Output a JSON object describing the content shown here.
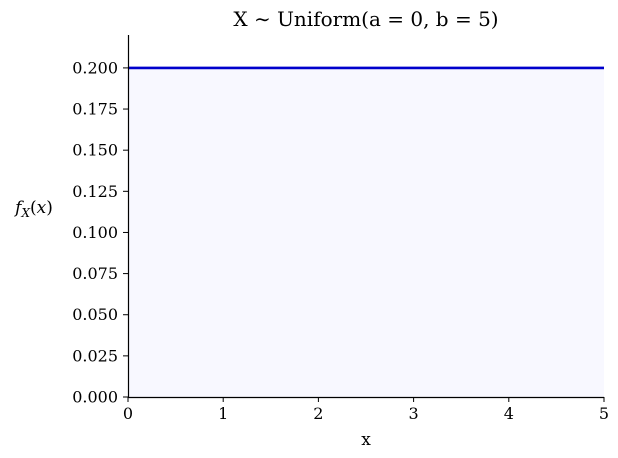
{
  "chart_data": {
    "type": "line",
    "title": "X ∼ Uniform(a = 0, b = 5)",
    "xlabel": "x",
    "ylabel": "f_X(x)",
    "ylabel_display": "fX(x)",
    "xlim": [
      0,
      5
    ],
    "ylim": [
      0,
      0.22
    ],
    "xticks": [
      0,
      1,
      2,
      3,
      4,
      5
    ],
    "xtick_labels": [
      "0",
      "1",
      "2",
      "3",
      "4",
      "5"
    ],
    "yticks": [
      0,
      0.025,
      0.05,
      0.075,
      0.1,
      0.125,
      0.15,
      0.175,
      0.2
    ],
    "ytick_labels": [
      "0.000",
      "0.025",
      "0.050",
      "0.075",
      "0.100",
      "0.125",
      "0.150",
      "0.175",
      "0.200"
    ],
    "series": [
      {
        "x": [
          0,
          5
        ],
        "y": [
          0.2,
          0.2
        ],
        "color": "#0000cc",
        "fill_color": "#f8f8ff"
      }
    ],
    "grid": false,
    "spines": [
      "left",
      "bottom"
    ]
  }
}
